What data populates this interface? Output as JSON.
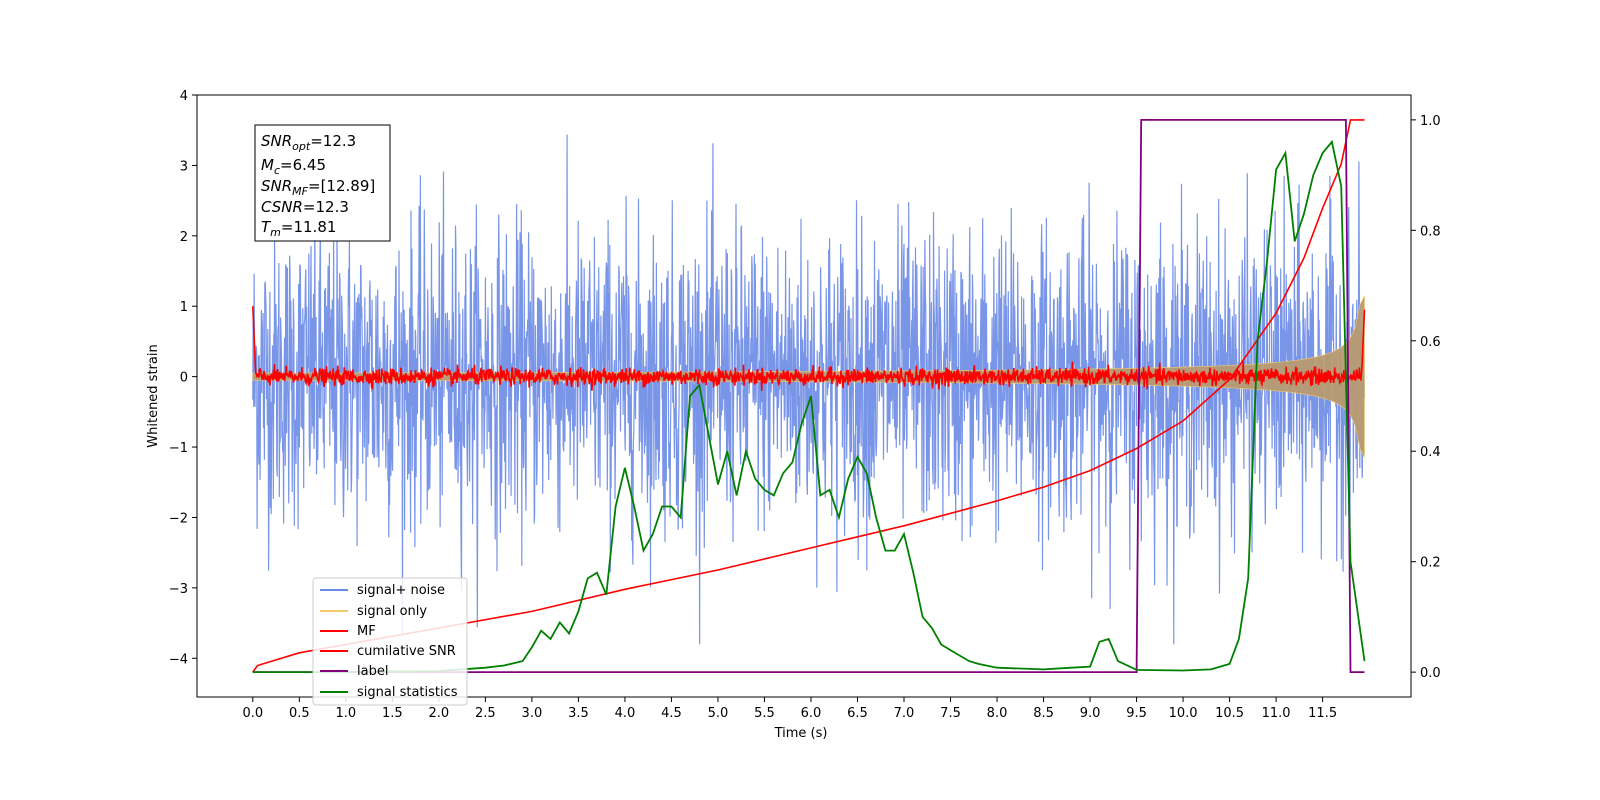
{
  "chart_data": {
    "type": "line",
    "title": "",
    "xlabel": "Time (s)",
    "ylabel": "Whitened strain",
    "xlim": [
      -0.6,
      12.45
    ],
    "ylim": [
      -4.55,
      4.0
    ],
    "ylim_right": [
      -0.045,
      1.045
    ],
    "x_ticks": [
      "0.0",
      "0.5",
      "1.0",
      "1.5",
      "2.0",
      "2.5",
      "3.0",
      "3.5",
      "4.0",
      "4.5",
      "5.0",
      "5.5",
      "6.0",
      "6.5",
      "7.0",
      "7.5",
      "8.0",
      "8.5",
      "9.0",
      "9.5",
      "10.0",
      "10.5",
      "11.0",
      "11.5"
    ],
    "y_ticks": [
      "4",
      "3",
      "2",
      "1",
      "0",
      "−1",
      "−2",
      "−3",
      "−4"
    ],
    "y_ticks_right": [
      "1.0",
      "0.8",
      "0.6",
      "0.4",
      "0.2",
      "0.0"
    ],
    "legend_position": "lower-left",
    "legend": [
      "signal+ noise",
      "signal only",
      "MF",
      "cumilative SNR",
      "label",
      "signal statistics"
    ],
    "series": [
      {
        "name": "signal+ noise",
        "axis": "left",
        "color": "#6a8ae6",
        "description_range": [
          -3.8,
          3.6
        ],
        "x_range": [
          0,
          11.95
        ]
      },
      {
        "name": "signal only",
        "axis": "left",
        "color": "#f5c96a",
        "x_range": [
          0,
          11.95
        ],
        "envelope_start": 0.05,
        "envelope_end": 1.15
      },
      {
        "name": "MF",
        "axis": "left",
        "color": "#ff0000",
        "x_range": [
          0,
          11.95
        ],
        "start_value": 1.0,
        "end_value": 0.95
      },
      {
        "name": "cumilative SNR",
        "axis": "right",
        "color": "#ff0000",
        "x": [
          0,
          0.05,
          0.5,
          1,
          2,
          3,
          4,
          5,
          6,
          7,
          8,
          8.5,
          9,
          9.5,
          10,
          10.5,
          11,
          11.3,
          11.5,
          11.7,
          11.8,
          11.95
        ],
        "y": [
          0.0,
          0.012,
          0.035,
          0.05,
          0.08,
          0.11,
          0.15,
          0.185,
          0.225,
          0.265,
          0.31,
          0.335,
          0.365,
          0.405,
          0.455,
          0.53,
          0.65,
          0.75,
          0.84,
          0.92,
          1.0,
          1.0
        ]
      },
      {
        "name": "label",
        "axis": "right",
        "color": "#800080",
        "x": [
          0,
          9.5,
          9.5,
          9.55,
          11.75,
          11.8,
          11.95
        ],
        "y": [
          0,
          0,
          0,
          1,
          1,
          0,
          0
        ]
      },
      {
        "name": "signal statistics",
        "axis": "right",
        "color": "#008000",
        "x": [
          0,
          1,
          2,
          2.5,
          2.7,
          2.9,
          3.0,
          3.1,
          3.2,
          3.3,
          3.4,
          3.5,
          3.6,
          3.7,
          3.8,
          3.9,
          4.0,
          4.1,
          4.2,
          4.3,
          4.4,
          4.5,
          4.6,
          4.7,
          4.8,
          4.9,
          5.0,
          5.1,
          5.2,
          5.3,
          5.4,
          5.5,
          5.6,
          5.7,
          5.8,
          5.9,
          6.0,
          6.1,
          6.2,
          6.3,
          6.4,
          6.5,
          6.6,
          6.7,
          6.8,
          6.9,
          7.0,
          7.1,
          7.2,
          7.3,
          7.4,
          7.5,
          7.6,
          7.7,
          7.8,
          8.0,
          8.5,
          8.8,
          9.0,
          9.1,
          9.2,
          9.3,
          9.5,
          10.0,
          10.3,
          10.5,
          10.6,
          10.7,
          10.8,
          10.9,
          11.0,
          11.1,
          11.2,
          11.3,
          11.4,
          11.5,
          11.6,
          11.7,
          11.8,
          11.95
        ],
        "y": [
          0.0,
          0.0,
          0.002,
          0.008,
          0.012,
          0.02,
          0.045,
          0.075,
          0.06,
          0.09,
          0.07,
          0.11,
          0.17,
          0.18,
          0.14,
          0.3,
          0.37,
          0.3,
          0.22,
          0.25,
          0.3,
          0.3,
          0.28,
          0.5,
          0.52,
          0.43,
          0.34,
          0.4,
          0.32,
          0.4,
          0.35,
          0.33,
          0.32,
          0.36,
          0.38,
          0.45,
          0.5,
          0.32,
          0.33,
          0.28,
          0.35,
          0.39,
          0.36,
          0.28,
          0.22,
          0.22,
          0.25,
          0.18,
          0.1,
          0.08,
          0.05,
          0.04,
          0.03,
          0.02,
          0.015,
          0.008,
          0.005,
          0.008,
          0.01,
          0.055,
          0.06,
          0.02,
          0.004,
          0.003,
          0.005,
          0.015,
          0.06,
          0.17,
          0.6,
          0.74,
          0.91,
          0.94,
          0.78,
          0.83,
          0.9,
          0.94,
          0.96,
          0.88,
          0.2,
          0.02
        ]
      }
    ],
    "annotations": {
      "snr_opt": {
        "symbol": "SNR",
        "sub": "opt",
        "value": "=12.3"
      },
      "mc": {
        "symbol": "M",
        "sub": "c",
        "value": "=6.45"
      },
      "snr_mf": {
        "symbol": "SNR",
        "sub": "MF",
        "value": "=[12.89]"
      },
      "csnr": {
        "symbol": "CSNR",
        "sub": "",
        "value": "=12.3"
      },
      "tm": {
        "symbol": "T",
        "sub": "m",
        "value": "=11.81"
      }
    }
  }
}
